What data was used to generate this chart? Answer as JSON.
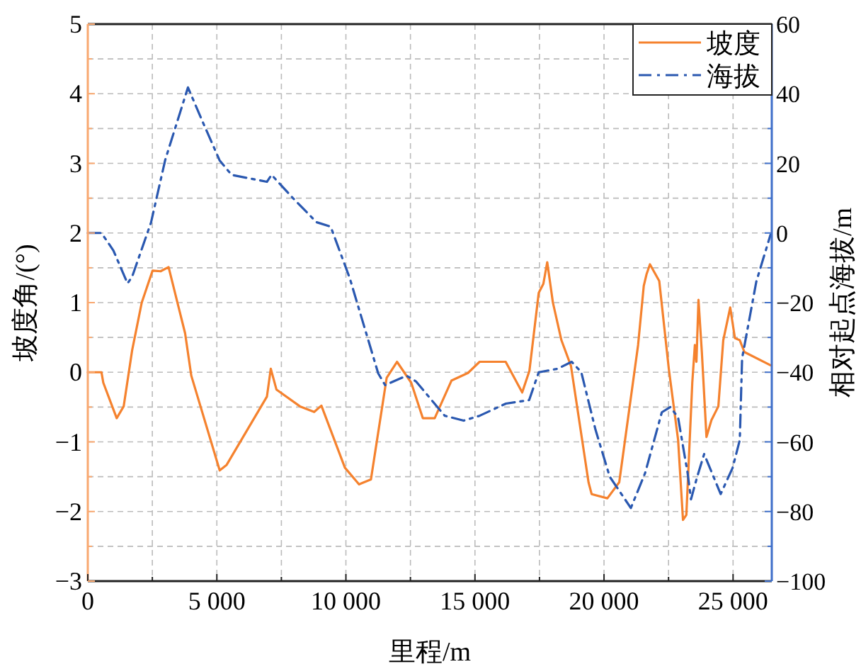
{
  "chart_data": {
    "type": "line",
    "xlabel": "里程/m",
    "ylabel": "坡度角/(°)",
    "y2label": "相对起点海拔/m",
    "xlim": [
      0,
      26500
    ],
    "xticks": [
      0,
      {
        "value": 2500,
        "label": null
      },
      {
        "value": 5000,
        "label": "5 000"
      },
      {
        "value": 7500,
        "label": null
      },
      {
        "value": 10000,
        "label": "10 000"
      },
      {
        "value": 12500,
        "label": null
      },
      {
        "value": 15000,
        "label": "15 000"
      },
      {
        "value": 17500,
        "label": null
      },
      {
        "value": 20000,
        "label": "20 000"
      },
      {
        "value": 22500,
        "label": null
      },
      {
        "value": 25000,
        "label": "25 000"
      }
    ],
    "ylim": [
      -3,
      5
    ],
    "yticks": [
      {
        "value": -3,
        "label": "−3"
      },
      {
        "value": -2.5,
        "label": null
      },
      {
        "value": -2,
        "label": "−2"
      },
      {
        "value": -1.5,
        "label": null
      },
      {
        "value": -1,
        "label": "−1"
      },
      {
        "value": -0.5,
        "label": null
      },
      0,
      {
        "value": 0.5,
        "label": null
      },
      1,
      {
        "value": 1.5,
        "label": null
      },
      2,
      {
        "value": 2.5,
        "label": null
      },
      3,
      {
        "value": 3.5,
        "label": null
      },
      4,
      {
        "value": 4.5,
        "label": null
      },
      5
    ],
    "y2lim": [
      -100,
      60
    ],
    "y2ticks": [
      {
        "value": -100,
        "label": "−100"
      },
      {
        "value": -90,
        "label": null
      },
      {
        "value": -80,
        "label": "−80"
      },
      {
        "value": -70,
        "label": null
      },
      {
        "value": -60,
        "label": "−60"
      },
      {
        "value": -50,
        "label": null
      },
      {
        "value": -40,
        "label": "−40"
      },
      {
        "value": -30,
        "label": null
      },
      {
        "value": -20,
        "label": "−20"
      },
      {
        "value": -10,
        "label": null
      },
      0,
      {
        "value": 10,
        "label": null
      },
      20,
      {
        "value": 30,
        "label": null
      },
      40,
      {
        "value": 50,
        "label": null
      },
      60
    ],
    "grid": true,
    "legend": "top right",
    "series": [
      {
        "name": "坡度",
        "color": "#f5822e",
        "line_style": "solid",
        "x": [
          0,
          530,
          600,
          1120,
          1390,
          1720,
          2090,
          2510,
          2820,
          3130,
          3770,
          4010,
          5110,
          5380,
          6940,
          7090,
          7310,
          8220,
          8770,
          9050,
          9960,
          10510,
          10970,
          11580,
          11980,
          12530,
          12980,
          13440,
          14090,
          14730,
          15180,
          16190,
          16830,
          17110,
          17470,
          17650,
          17800,
          18020,
          18350,
          18720,
          19400,
          19520,
          20130,
          20590,
          21320,
          21540,
          21650,
          21780,
          22140,
          22510,
          22870,
          23060,
          23190,
          23420,
          23520,
          23580,
          23660,
          23790,
          23970,
          24160,
          24430,
          24620,
          24890,
          25070,
          25260,
          25440,
          26450
        ],
        "values": [
          0,
          0,
          -0.15,
          -0.66,
          -0.49,
          0.32,
          1.0,
          1.46,
          1.45,
          1.51,
          0.56,
          -0.05,
          -1.41,
          -1.33,
          -0.35,
          0.05,
          -0.25,
          -0.49,
          -0.57,
          -0.48,
          -1.37,
          -1.61,
          -1.54,
          -0.08,
          0.15,
          -0.15,
          -0.66,
          -0.66,
          -0.12,
          -0.01,
          0.15,
          0.15,
          -0.29,
          0.02,
          1.14,
          1.27,
          1.58,
          1.0,
          0.46,
          0.09,
          -1.58,
          -1.75,
          -1.81,
          -1.58,
          0.39,
          1.24,
          1.41,
          1.55,
          1.31,
          0.05,
          -0.97,
          -2.12,
          -2.05,
          -0.15,
          0.39,
          0.15,
          1.04,
          0.29,
          -0.93,
          -0.69,
          -0.49,
          0.46,
          0.93,
          0.49,
          0.46,
          0.29,
          0.1
        ]
      },
      {
        "name": "海拔",
        "color": "#2a58b0",
        "line_style": "dashdot",
        "axis": "y2",
        "x": [
          0,
          530,
          990,
          1540,
          1720,
          2450,
          3000,
          3880,
          4470,
          5110,
          5570,
          6940,
          7120,
          7950,
          8860,
          9410,
          10150,
          11250,
          11520,
          12350,
          12710,
          13830,
          14560,
          15180,
          16200,
          17100,
          17470,
          18200,
          18750,
          19120,
          19670,
          20220,
          21040,
          21590,
          22240,
          22570,
          22870,
          23240,
          23370,
          23610,
          23880,
          24520,
          24980,
          25260,
          25350,
          25900,
          26450
        ],
        "values": [
          0,
          0,
          -5,
          -14.5,
          -12.5,
          3,
          21,
          41.8,
          31.6,
          20.8,
          16.7,
          14.7,
          16.7,
          10,
          3.1,
          1.8,
          -13,
          -40.3,
          -43.7,
          -41,
          -42.6,
          -52.5,
          -53.9,
          -52.5,
          -49,
          -48,
          -40,
          -39,
          -37,
          -40,
          -56.5,
          -70,
          -79,
          -69,
          -51.5,
          -50,
          -53,
          -69,
          -76.5,
          -70,
          -63.5,
          -75,
          -67.5,
          -59.5,
          -36,
          -14,
          -0.5
        ]
      }
    ]
  }
}
